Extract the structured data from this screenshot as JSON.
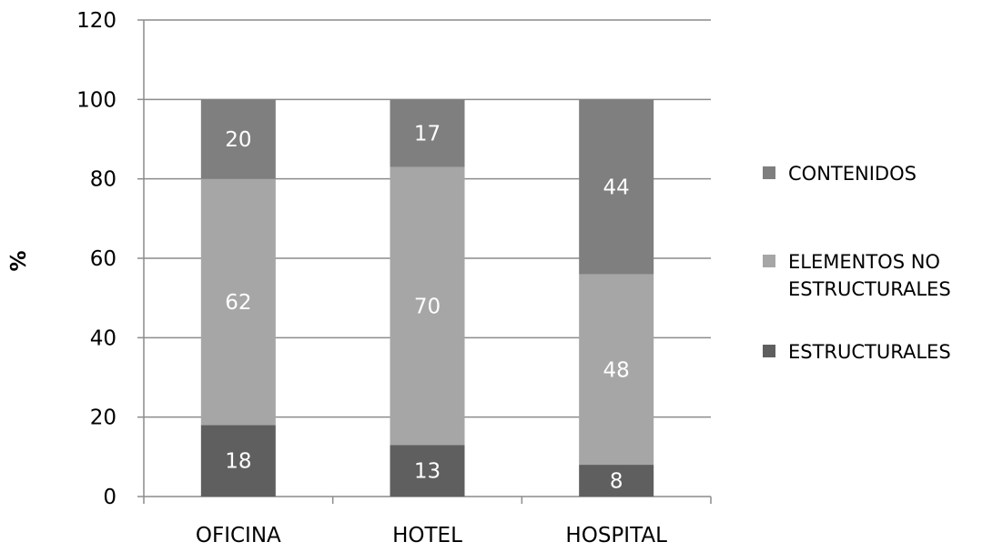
{
  "chart_data": {
    "type": "bar",
    "stacked": true,
    "title": "",
    "xlabel": "",
    "ylabel": "%",
    "ylim": [
      0,
      120
    ],
    "yticks": [
      "0",
      "20",
      "40",
      "60",
      "80",
      "100",
      "120"
    ],
    "grid": true,
    "legend_position": "right",
    "categories": [
      "OFICINA",
      "HOTEL",
      "HOSPITAL"
    ],
    "series": [
      {
        "name": "ESTRUCTURALES",
        "values": [
          18,
          13,
          8
        ],
        "color": "#5f5f5f"
      },
      {
        "name": "ELEMENTOS NO ESTRUCTURALES",
        "values": [
          62,
          70,
          48
        ],
        "color": "#a6a6a6"
      },
      {
        "name": "CONTENIDOS",
        "values": [
          20,
          17,
          44
        ],
        "color": "#7f7f7f"
      }
    ],
    "legend_order": [
      "CONTENIDOS",
      "ELEMENTOS NO ESTRUCTURALES",
      "ESTRUCTURALES"
    ]
  }
}
